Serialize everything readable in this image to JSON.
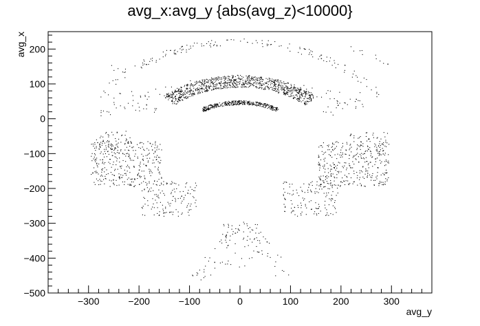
{
  "chart_data": {
    "type": "scatter",
    "title": "avg_x:avg_y {abs(avg_z)<10000}",
    "xlabel": "avg_y",
    "ylabel": "avg_x",
    "xlim": [
      -380,
      380
    ],
    "ylim": [
      -500,
      250
    ],
    "xticks": [
      -300,
      -200,
      -100,
      0,
      100,
      200,
      300
    ],
    "yticks": [
      -500,
      -400,
      -300,
      -200,
      -100,
      0,
      100,
      200
    ],
    "grid": false,
    "legend": "none",
    "colors": {
      "points": "#000000",
      "frame": "#000000",
      "background": "#ffffff"
    },
    "point_groups": [
      {
        "shape": "arc",
        "center": [
          0,
          -100
        ],
        "r": [
          310,
          330
        ],
        "deg": [
          30,
          150
        ],
        "count": 150
      },
      {
        "shape": "arc",
        "center": [
          0,
          -350
        ],
        "r": [
          440,
          470
        ],
        "deg": [
          58,
          128
        ],
        "count": 80
      },
      {
        "shape": "arc",
        "center": [
          0,
          -100
        ],
        "r": [
          190,
          225
        ],
        "deg": [
          47,
          133
        ],
        "count": 950
      },
      {
        "shape": "arc",
        "center": [
          0,
          -100
        ],
        "r": [
          140,
          152
        ],
        "deg": [
          59,
          121
        ],
        "count": 380
      },
      {
        "shape": "patch",
        "center": [
          -225,
          -130
        ],
        "size": [
          140,
          130
        ],
        "count": 340
      },
      {
        "shape": "patch",
        "center": [
          225,
          -130
        ],
        "size": [
          140,
          130
        ],
        "count": 340
      },
      {
        "shape": "patch",
        "center": [
          -255,
          -70
        ],
        "size": [
          80,
          70
        ],
        "count": 60
      },
      {
        "shape": "patch",
        "center": [
          255,
          -70
        ],
        "size": [
          80,
          70
        ],
        "count": 60
      },
      {
        "shape": "patch",
        "center": [
          -140,
          -230
        ],
        "size": [
          110,
          100
        ],
        "count": 140
      },
      {
        "shape": "patch",
        "center": [
          140,
          -230
        ],
        "size": [
          110,
          100
        ],
        "count": 140
      },
      {
        "shape": "band",
        "from": [
          -10,
          -300
        ],
        "to": [
          -80,
          -460
        ],
        "width": 40,
        "count": 45
      },
      {
        "shape": "band",
        "from": [
          10,
          -300
        ],
        "to": [
          90,
          -450
        ],
        "width": 40,
        "count": 45
      },
      {
        "shape": "patch",
        "center": [
          0,
          -370
        ],
        "size": [
          60,
          120
        ],
        "count": 30
      },
      {
        "shape": "patch",
        "center": [
          -190,
          30
        ],
        "size": [
          50,
          40
        ],
        "count": 12
      },
      {
        "shape": "patch",
        "center": [
          190,
          30
        ],
        "size": [
          50,
          40
        ],
        "count": 12
      },
      {
        "shape": "patch",
        "center": [
          -230,
          70
        ],
        "size": [
          40,
          60
        ],
        "count": 6
      },
      {
        "shape": "patch",
        "center": [
          250,
          60
        ],
        "size": [
          40,
          60
        ],
        "count": 6
      },
      {
        "shape": "patch",
        "center": [
          280,
          170
        ],
        "size": [
          40,
          30
        ],
        "count": 6
      },
      {
        "shape": "patch",
        "center": [
          -240,
          140
        ],
        "size": [
          40,
          30
        ],
        "count": 6
      },
      {
        "shape": "patch",
        "center": [
          230,
          195
        ],
        "size": [
          30,
          25
        ],
        "count": 5
      }
    ]
  }
}
